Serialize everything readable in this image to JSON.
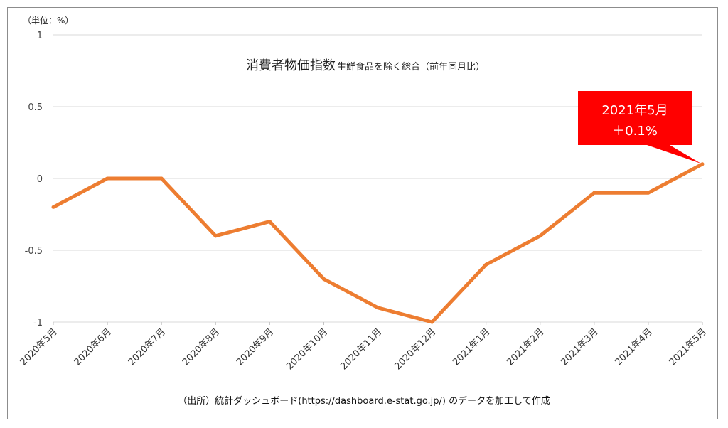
{
  "chart_data": {
    "type": "line",
    "unit_label": "（単位：%）",
    "title": "消費者物価指数",
    "subtitle": "生鮮食品を除く総合（前年同月比）",
    "categories": [
      "2020年5月",
      "2020年6月",
      "2020年7月",
      "2020年8月",
      "2020年9月",
      "2020年10月",
      "2020年11月",
      "2020年12月",
      "2021年1月",
      "2021年2月",
      "2021年3月",
      "2021年4月",
      "2021年5月"
    ],
    "series": [
      {
        "values": [
          -0.2,
          0,
          0,
          -0.4,
          -0.3,
          -0.7,
          -0.9,
          -1.0,
          -0.6,
          -0.4,
          -0.1,
          -0.1,
          0.1
        ],
        "color": "#ED7D31"
      }
    ],
    "ylim": [
      -1,
      1
    ],
    "yticks": [
      "1",
      "0.5",
      "0",
      "-0.5",
      "-1"
    ],
    "grid": true,
    "annotation": {
      "line1": "2021年5月",
      "line2": "＋0.1%",
      "color": "#FF0000"
    }
  },
  "source": "（出所）統計ダッシュボード(https://dashboard.e-stat.go.jp/) のデータを加工して作成"
}
